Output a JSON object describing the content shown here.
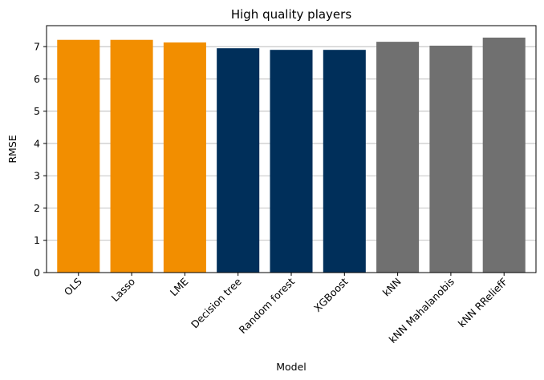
{
  "chart_data": {
    "type": "bar",
    "title": "High quality players",
    "xlabel": "Model",
    "ylabel": "RMSE",
    "ylim": [
      0,
      7.65
    ],
    "yticks": [
      0,
      1,
      2,
      3,
      4,
      5,
      6,
      7
    ],
    "grid": "y",
    "categories": [
      "OLS",
      "Lasso",
      "LME",
      "Decision tree",
      "Random forest",
      "XGBoost",
      "kNN",
      "kNN Mahalanobis",
      "kNN RReliefF"
    ],
    "values": [
      7.21,
      7.21,
      7.13,
      6.95,
      6.9,
      6.9,
      7.15,
      7.03,
      7.28
    ],
    "colors": [
      "#f28e00",
      "#f28e00",
      "#f28e00",
      "#002f5a",
      "#002f5a",
      "#002f5a",
      "#707070",
      "#707070",
      "#707070"
    ]
  }
}
